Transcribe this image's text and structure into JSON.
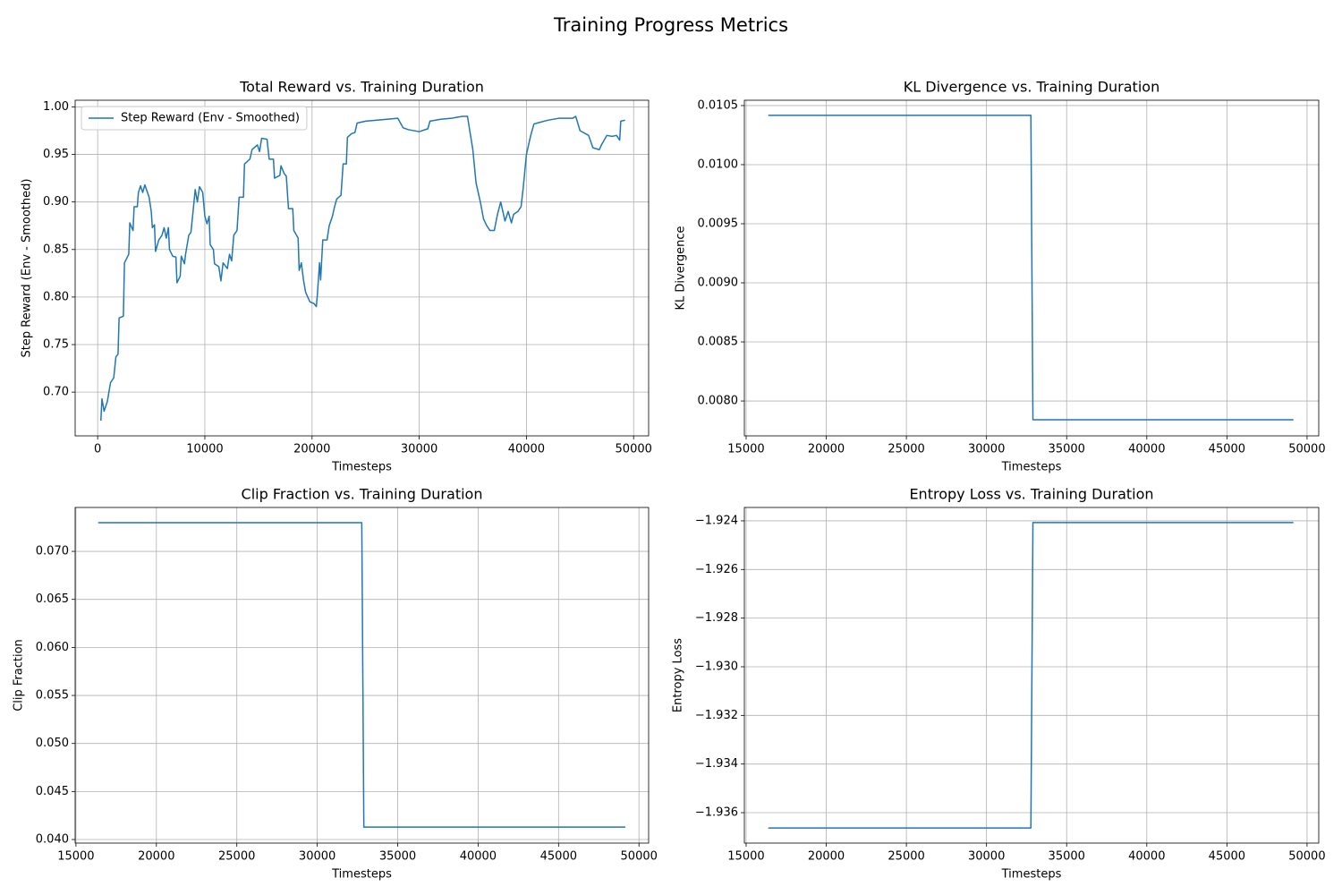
{
  "title": "Training Progress Metrics",
  "chart_data": [
    {
      "type": "line",
      "title": "Total Reward vs. Training Duration",
      "xlabel": "Timesteps",
      "ylabel": "Step Reward (Env - Smoothed)",
      "x": [
        300,
        400,
        600,
        900,
        1200,
        1500,
        1700,
        1900,
        2000,
        2400,
        2500,
        2900,
        3000,
        3300,
        3400,
        3700,
        3800,
        4000,
        4200,
        4400,
        4800,
        5000,
        5100,
        5300,
        5400,
        5700,
        6000,
        6200,
        6400,
        6600,
        6700,
        7000,
        7300,
        7400,
        7700,
        7800,
        8100,
        8200,
        8500,
        8700,
        8900,
        9100,
        9300,
        9500,
        9800,
        10000,
        10200,
        10400,
        10500,
        10800,
        10900,
        11300,
        11500,
        11700,
        12100,
        12300,
        12500,
        12700,
        13000,
        13200,
        13600,
        13700,
        14200,
        14400,
        14900,
        15100,
        15300,
        15800,
        16000,
        16400,
        16500,
        17000,
        17100,
        17400,
        17600,
        17800,
        18200,
        18300,
        18700,
        18800,
        19000,
        19200,
        19400,
        19800,
        20200,
        20400,
        20500,
        20700,
        20800,
        21000,
        21400,
        21600,
        21900,
        22100,
        22300,
        22700,
        22900,
        23200,
        23300,
        23700,
        24000,
        24200,
        25000,
        27000,
        28000,
        28500,
        29000,
        30000,
        30800,
        31000,
        32000,
        33000,
        34000,
        34500,
        35000,
        35300,
        35500,
        35700,
        36000,
        36300,
        36600,
        37000,
        37300,
        37600,
        38000,
        38300,
        38600,
        38800,
        39200,
        39500,
        39700,
        40000,
        40400,
        40700,
        41000,
        42000,
        43000,
        44300,
        44600,
        45000,
        45800,
        46200,
        46800,
        47000,
        47500,
        48000,
        48400,
        48700,
        48800,
        49200
      ],
      "series": [
        {
          "name": "Step Reward (Env - Smoothed)",
          "color": "#1f77b4",
          "values": [
            0.67,
            0.693,
            0.68,
            0.69,
            0.71,
            0.715,
            0.737,
            0.74,
            0.778,
            0.78,
            0.836,
            0.845,
            0.878,
            0.87,
            0.895,
            0.895,
            0.91,
            0.917,
            0.91,
            0.918,
            0.905,
            0.89,
            0.873,
            0.876,
            0.848,
            0.86,
            0.865,
            0.873,
            0.862,
            0.873,
            0.85,
            0.843,
            0.842,
            0.815,
            0.822,
            0.843,
            0.835,
            0.845,
            0.865,
            0.868,
            0.89,
            0.913,
            0.9,
            0.916,
            0.91,
            0.885,
            0.877,
            0.885,
            0.855,
            0.85,
            0.835,
            0.832,
            0.817,
            0.836,
            0.83,
            0.845,
            0.838,
            0.865,
            0.87,
            0.905,
            0.905,
            0.94,
            0.945,
            0.955,
            0.96,
            0.953,
            0.967,
            0.966,
            0.945,
            0.945,
            0.925,
            0.928,
            0.938,
            0.93,
            0.927,
            0.893,
            0.893,
            0.87,
            0.862,
            0.828,
            0.836,
            0.818,
            0.805,
            0.795,
            0.793,
            0.79,
            0.803,
            0.836,
            0.818,
            0.86,
            0.86,
            0.875,
            0.885,
            0.895,
            0.903,
            0.907,
            0.94,
            0.94,
            0.968,
            0.972,
            0.973,
            0.983,
            0.985,
            0.987,
            0.988,
            0.978,
            0.976,
            0.974,
            0.977,
            0.985,
            0.987,
            0.988,
            0.99,
            0.99,
            0.955,
            0.92,
            0.91,
            0.9,
            0.882,
            0.875,
            0.87,
            0.87,
            0.887,
            0.9,
            0.88,
            0.89,
            0.878,
            0.887,
            0.89,
            0.895,
            0.915,
            0.95,
            0.97,
            0.982,
            0.983,
            0.986,
            0.988,
            0.988,
            0.99,
            0.975,
            0.97,
            0.957,
            0.955,
            0.96,
            0.97,
            0.969,
            0.97,
            0.965,
            0.985,
            0.986
          ]
        }
      ],
      "xlim": [
        -2100,
        51400
      ],
      "xticks": [
        0,
        10000,
        20000,
        30000,
        40000,
        50000
      ],
      "ylim": [
        0.654,
        1.007
      ],
      "yticks": [
        {
          "value": 0.7,
          "label": "0.70"
        },
        0.75,
        {
          "value": 0.8,
          "label": "0.80"
        },
        0.85,
        {
          "value": 0.9,
          "label": "0.90"
        },
        0.95,
        {
          "value": 1.0,
          "label": "1.00"
        }
      ],
      "grid": true,
      "legend": "upper left"
    },
    {
      "type": "line",
      "title": "KL Divergence vs. Training Duration",
      "xlabel": "Timesteps",
      "ylabel": "KL Divergence",
      "x": [
        16384,
        32768,
        32896,
        49152
      ],
      "values": [
        0.010417,
        0.010417,
        0.007841,
        0.007841
      ],
      "color": "#1f77b4",
      "xlim": [
        14890,
        50730
      ],
      "xticks": [
        15000,
        20000,
        25000,
        30000,
        35000,
        40000,
        45000,
        50000
      ],
      "ylim": [
        0.007705,
        0.010545
      ],
      "yticks": [
        {
          "value": 0.008,
          "label": "0.0080"
        },
        0.0085,
        {
          "value": 0.009,
          "label": "0.0090"
        },
        0.0095,
        {
          "value": 0.01,
          "label": "0.0100"
        },
        0.0105
      ],
      "grid": true
    },
    {
      "type": "line",
      "title": "Clip Fraction vs. Training Duration",
      "xlabel": "Timesteps",
      "ylabel": "Clip Fraction",
      "x": [
        16384,
        32768,
        32896,
        49152
      ],
      "values": [
        0.07298,
        0.07298,
        0.0413,
        0.0413
      ],
      "color": "#1f77b4",
      "xlim": [
        14950,
        50600
      ],
      "xticks": [
        15000,
        20000,
        25000,
        30000,
        35000,
        40000,
        45000,
        50000
      ],
      "ylim": [
        0.03963,
        0.07457
      ],
      "yticks": [
        {
          "value": 0.04,
          "label": "0.040"
        },
        0.045,
        {
          "value": 0.05,
          "label": "0.050"
        },
        0.055,
        {
          "value": 0.06,
          "label": "0.060"
        },
        0.065,
        {
          "value": 0.07,
          "label": "0.070"
        }
      ],
      "grid": true
    },
    {
      "type": "line",
      "title": "Entropy Loss vs. Training Duration",
      "xlabel": "Timesteps",
      "ylabel": "Entropy Loss",
      "x": [
        16384,
        32768,
        32896,
        49152
      ],
      "values": [
        -1.93663,
        -1.93663,
        -1.92407,
        -1.92407
      ],
      "color": "#1f77b4",
      "xlim": [
        14890,
        50730
      ],
      "xticks": [
        15000,
        20000,
        25000,
        30000,
        35000,
        40000,
        45000,
        50000
      ],
      "ylim": [
        -1.93725,
        -1.92345
      ],
      "yticks": [
        {
          "value": -1.936,
          "label": "−1.936"
        },
        {
          "value": -1.934,
          "label": "−1.934"
        },
        {
          "value": -1.932,
          "label": "−1.932"
        },
        {
          "value": -1.93,
          "label": "−1.930"
        },
        {
          "value": -1.928,
          "label": "−1.928"
        },
        {
          "value": -1.926,
          "label": "−1.926"
        },
        {
          "value": -1.924,
          "label": "−1.924"
        }
      ],
      "grid": true
    }
  ]
}
